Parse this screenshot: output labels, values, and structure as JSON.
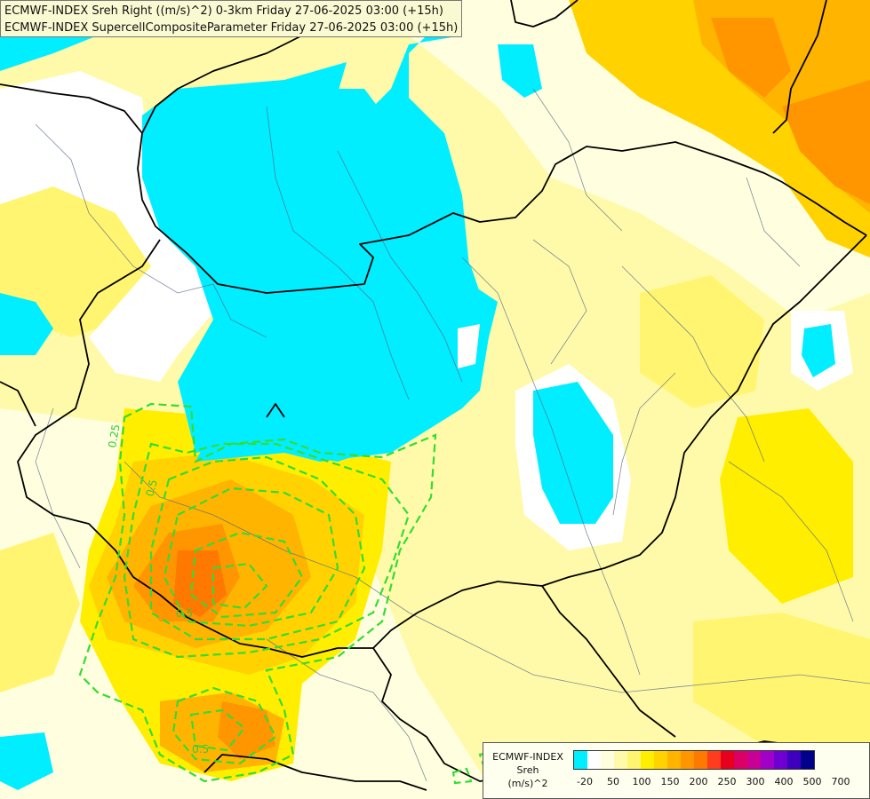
{
  "title": {
    "line1": "ECMWF-INDEX Sreh Right ((m/s)^2) 0-3km Friday 27-06-2025 03:00 (+15h)",
    "line2": "ECMWF-INDEX SupercellCompositeParameter Friday 27-06-2025 03:00 (+15h)"
  },
  "contour_labels": [
    "0.25",
    "0.5",
    "0.5",
    "0.5"
  ],
  "legend": {
    "line1": "ECMWF-INDEX",
    "line2": "Sreh",
    "line3": "(m/s)^2",
    "colors": [
      "#00eeff",
      "#ffffff",
      "#ffffe0",
      "#fffaaa",
      "#fff570",
      "#ffee00",
      "#ffd200",
      "#ffb400",
      "#ff9600",
      "#ff7800",
      "#ff3c1e",
      "#e6001e",
      "#dc0064",
      "#c80096",
      "#a000c8",
      "#6e00d2",
      "#3c00be",
      "#00008c"
    ],
    "ticks": [
      "-20",
      "50",
      "100",
      "150",
      "200",
      "250",
      "300",
      "400",
      "500",
      "700"
    ]
  },
  "colors": {
    "negative_helicity": "#00eeff",
    "neutral": "#ffffff",
    "low": "#ffffe0",
    "mid": "#fff570",
    "high": "#ffd200",
    "very_high": "#ff9600",
    "extreme": "#ff7800",
    "scp_contour": "#33dd33",
    "border": "#000000",
    "river": "#556688"
  }
}
